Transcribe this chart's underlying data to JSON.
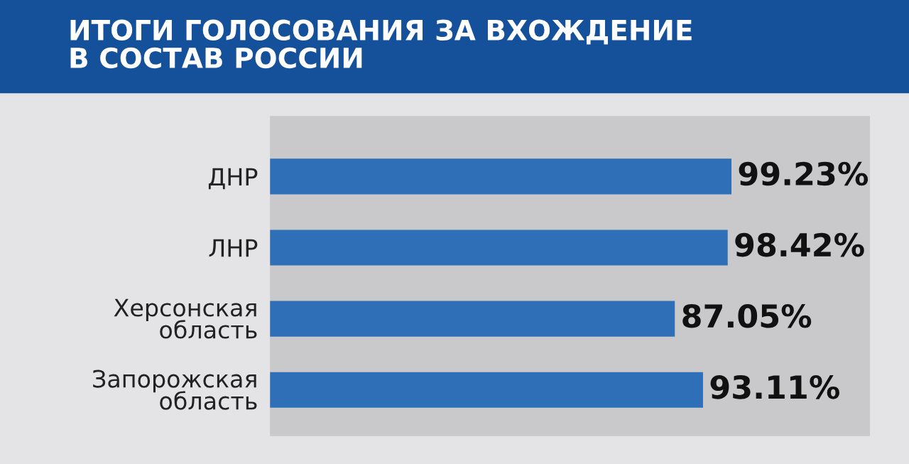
{
  "chart_data": {
    "type": "bar",
    "orientation": "horizontal",
    "title": "ИТОГИ ГОЛОСОВАНИЯ ЗА ВХОЖДЕНИЕ\nВ СОСТАВ РОССИИ",
    "categories": [
      "ДНР",
      "ЛНР",
      "Херсонская\nобласть",
      "Запорожская\nобласть"
    ],
    "values": [
      99.23,
      98.42,
      87.05,
      93.11
    ],
    "value_labels": [
      "99.23%",
      "98.42%",
      "87.05%",
      "93.11%"
    ],
    "color": "#2f6fb8",
    "tick_labels": "y",
    "grid": false,
    "legend": false
  }
}
